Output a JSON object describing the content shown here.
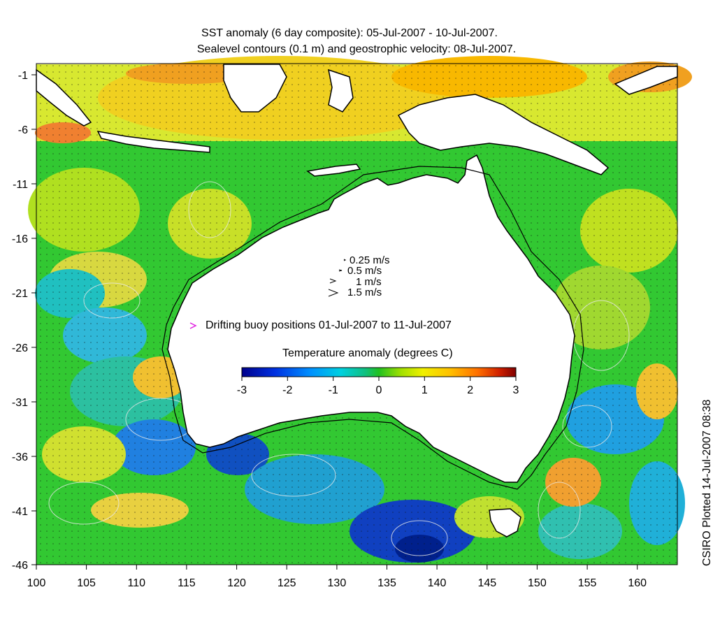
{
  "title_line1": "SST anomaly (6 day composite): 05-Jul-2007 - 10-Jul-2007.",
  "title_line2": "Sealevel contours (0.1 m) and geostrophic velocity: 08-Jul-2007.",
  "credit": "CSIRO Plotted 14-Jul-2007 08:38",
  "axes": {
    "x_ticks": [
      "100",
      "105",
      "110",
      "115",
      "120",
      "125",
      "130",
      "135",
      "140",
      "145",
      "150",
      "155",
      "160"
    ],
    "y_ticks": [
      "-1",
      "-6",
      "-11",
      "-16",
      "-21",
      "-26",
      "-31",
      "-36",
      "-41",
      "-46"
    ],
    "lon_range": [
      100,
      164
    ],
    "lat_range": [
      -46,
      0
    ]
  },
  "velocity_legend": [
    "0.25 m/s",
    "0.5 m/s",
    "1 m/s",
    "1.5 m/s"
  ],
  "buoy_label": "Drifting buoy positions 01-Jul-2007 to 11-Jul-2007",
  "colorbar": {
    "title": "Temperature anomaly (degrees C)",
    "ticks": [
      "-3",
      "-2",
      "-1",
      "0",
      "1",
      "2",
      "3"
    ],
    "range": [
      -3,
      3
    ]
  },
  "colors": {
    "land": "#ffffff",
    "coast": "#000000",
    "contour": "#e8e8e8",
    "buoy": "#e020e0"
  }
}
